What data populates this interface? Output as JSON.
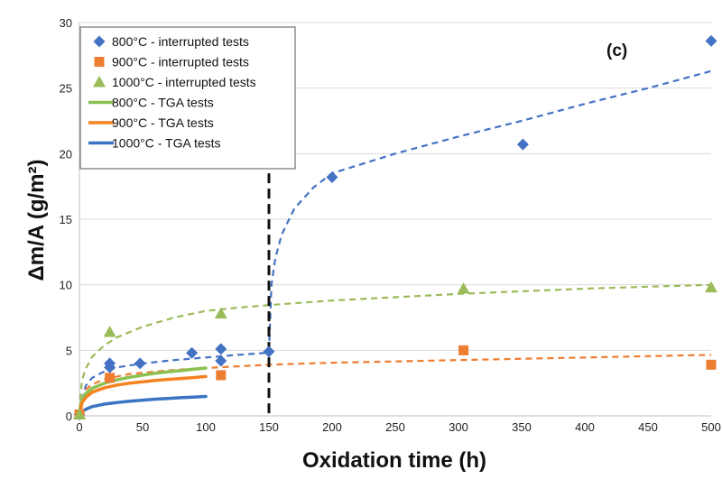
{
  "chart_data": {
    "type": "scatter",
    "panel_label": "(c)",
    "xlabel": "Oxidation time (h)",
    "ylabel": "Δm/A (g/m²)",
    "xlim": [
      0,
      500
    ],
    "ylim": [
      0,
      30
    ],
    "xticks": [
      0,
      50,
      100,
      150,
      200,
      250,
      300,
      350,
      400,
      450,
      500
    ],
    "yticks": [
      0,
      5,
      10,
      15,
      20,
      25,
      30
    ],
    "grid": true,
    "legend_position": "top-left",
    "vline": {
      "x": 150,
      "style": "dashed",
      "color": "#111111"
    },
    "series": [
      {
        "name": "800°C - interrupted tests",
        "kind": "marker",
        "marker": "diamond",
        "color": "#4472c4",
        "x": [
          0,
          24,
          24,
          48,
          89,
          112,
          112,
          150,
          200,
          351,
          500
        ],
        "y": [
          0.1,
          3.7,
          4.0,
          4.0,
          4.8,
          5.1,
          4.2,
          4.9,
          18.2,
          20.7,
          28.6
        ]
      },
      {
        "name": "900°C - interrupted tests",
        "kind": "marker",
        "marker": "square",
        "color": "#ed7d31",
        "x": [
          0,
          24,
          112,
          304,
          500
        ],
        "y": [
          0.1,
          2.9,
          3.1,
          5.0,
          3.9
        ]
      },
      {
        "name": "1000°C - interrupted tests",
        "kind": "marker",
        "marker": "triangle",
        "color": "#9bbb59",
        "x": [
          0,
          24,
          112,
          304,
          500
        ],
        "y": [
          0.1,
          6.4,
          7.8,
          9.7,
          9.8
        ]
      },
      {
        "name": "800°C - TGA tests",
        "kind": "line",
        "color": "#8cc152",
        "x": [
          0,
          2,
          5,
          10,
          20,
          30,
          40,
          50,
          60,
          70,
          80,
          90,
          100
        ],
        "y": [
          0,
          1.2,
          1.7,
          2.1,
          2.5,
          2.75,
          2.95,
          3.1,
          3.25,
          3.35,
          3.45,
          3.55,
          3.65
        ]
      },
      {
        "name": "900°C - TGA tests",
        "kind": "line",
        "color": "#f58220",
        "x": [
          0,
          2,
          5,
          10,
          20,
          30,
          40,
          50,
          60,
          70,
          80,
          90,
          100
        ],
        "y": [
          0,
          1.0,
          1.4,
          1.8,
          2.15,
          2.35,
          2.5,
          2.6,
          2.7,
          2.78,
          2.85,
          2.92,
          3.0
        ]
      },
      {
        "name": "1000°C - TGA tests",
        "kind": "line",
        "color": "#3a75c4",
        "x": [
          0,
          2,
          5,
          10,
          20,
          30,
          40,
          50,
          60,
          70,
          80,
          90,
          100
        ],
        "y": [
          0,
          0.3,
          0.5,
          0.7,
          0.9,
          1.02,
          1.12,
          1.2,
          1.27,
          1.33,
          1.38,
          1.43,
          1.48
        ]
      }
    ],
    "trend_lines": [
      {
        "color": "#4472c4",
        "x": [
          0,
          5,
          10,
          20,
          30,
          50,
          75,
          100,
          125,
          148
        ],
        "y": [
          0.4,
          2.3,
          2.9,
          3.4,
          3.7,
          4.0,
          4.25,
          4.45,
          4.65,
          4.8
        ]
      },
      {
        "color": "#4472c4",
        "x": [
          150,
          152,
          155,
          160,
          170,
          185,
          200,
          250,
          300,
          350,
          400,
          450,
          500
        ],
        "y": [
          4.9,
          10.0,
          12.0,
          13.8,
          15.8,
          17.4,
          18.5,
          20.0,
          21.3,
          22.5,
          23.8,
          25.0,
          26.3
        ]
      },
      {
        "color": "#ed7d31",
        "x": [
          0,
          5,
          10,
          20,
          40,
          75,
          100,
          150,
          200,
          300,
          400,
          500
        ],
        "y": [
          0.4,
          2.0,
          2.4,
          2.8,
          3.2,
          3.5,
          3.65,
          3.9,
          4.05,
          4.25,
          4.45,
          4.65
        ]
      },
      {
        "color": "#9bbb59",
        "x": [
          0,
          2,
          5,
          10,
          20,
          30,
          50,
          75,
          100,
          125,
          150,
          200,
          300,
          400,
          500
        ],
        "y": [
          0.4,
          2.7,
          3.6,
          4.5,
          5.4,
          6.0,
          6.8,
          7.5,
          8.0,
          8.25,
          8.45,
          8.8,
          9.3,
          9.7,
          10.0
        ]
      }
    ]
  }
}
